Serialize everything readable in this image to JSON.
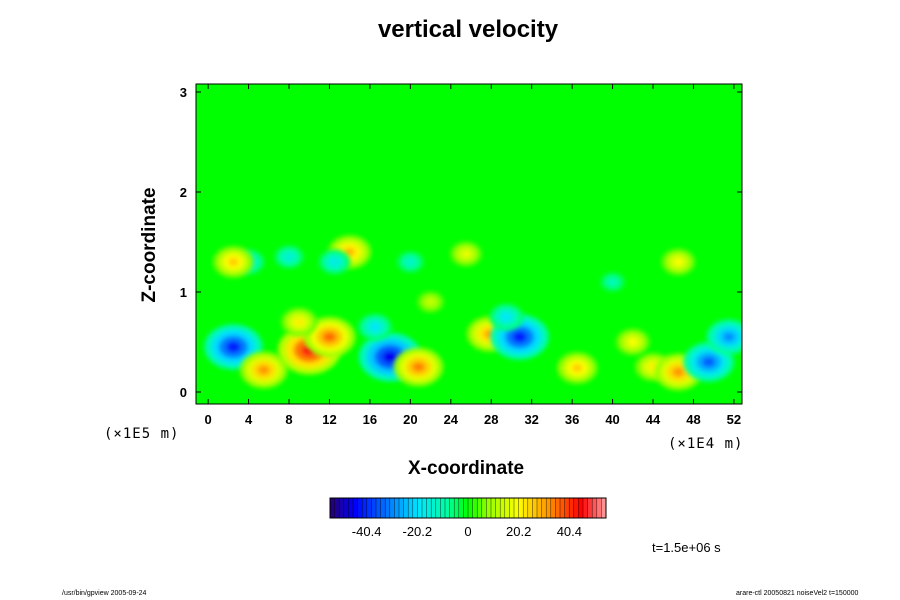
{
  "chart_data": {
    "type": "heatmap",
    "title": "vertical velocity",
    "xlabel": "X-coordinate",
    "ylabel": "Z-coordinate",
    "x_unit": "(×1E4 m)",
    "y_unit": "(×1E5 m)",
    "x_ticks": [
      0,
      4,
      8,
      12,
      16,
      20,
      24,
      28,
      32,
      36,
      40,
      44,
      48,
      52
    ],
    "y_ticks": [
      0,
      1,
      2,
      3
    ],
    "xlim": [
      -1.2,
      52.8
    ],
    "ylim": [
      -0.12,
      3.08
    ],
    "colorbar": {
      "ticks": [
        -40.4,
        -20.2,
        0,
        20.2,
        40.4
      ],
      "range": [
        -55,
        55
      ]
    },
    "background_value": 0,
    "features": [
      {
        "x": 2.5,
        "z": 0.45,
        "value": -42
      },
      {
        "x": 5.5,
        "z": 0.22,
        "value": 32
      },
      {
        "x": 10.0,
        "z": 0.42,
        "value": 46
      },
      {
        "x": 12.0,
        "z": 0.55,
        "value": 36
      },
      {
        "x": 9.0,
        "z": 0.7,
        "value": 22
      },
      {
        "x": 18.0,
        "z": 0.35,
        "value": -46
      },
      {
        "x": 16.5,
        "z": 0.65,
        "value": -20
      },
      {
        "x": 20.8,
        "z": 0.25,
        "value": 34
      },
      {
        "x": 27.8,
        "z": 0.58,
        "value": 30
      },
      {
        "x": 30.8,
        "z": 0.55,
        "value": -42
      },
      {
        "x": 29.5,
        "z": 0.75,
        "value": -20
      },
      {
        "x": 36.5,
        "z": 0.24,
        "value": 26
      },
      {
        "x": 42.0,
        "z": 0.5,
        "value": 20
      },
      {
        "x": 44.0,
        "z": 0.25,
        "value": 22
      },
      {
        "x": 46.5,
        "z": 0.2,
        "value": 32
      },
      {
        "x": 49.5,
        "z": 0.3,
        "value": -35
      },
      {
        "x": 51.5,
        "z": 0.55,
        "value": -30
      },
      {
        "x": 4.0,
        "z": 1.3,
        "value": -18
      },
      {
        "x": 2.5,
        "z": 1.3,
        "value": 26
      },
      {
        "x": 14.0,
        "z": 1.4,
        "value": 28
      },
      {
        "x": 12.5,
        "z": 1.3,
        "value": -18
      },
      {
        "x": 8.0,
        "z": 1.35,
        "value": -16
      },
      {
        "x": 20.0,
        "z": 1.3,
        "value": -14
      },
      {
        "x": 25.5,
        "z": 1.38,
        "value": 18
      },
      {
        "x": 46.5,
        "z": 1.3,
        "value": 20
      },
      {
        "x": 40.0,
        "z": 1.1,
        "value": -12
      },
      {
        "x": 22.0,
        "z": 0.9,
        "value": 14
      }
    ],
    "time": "t=1.5e+06 s",
    "footer_left": "/usr/bin/gpview 2005-09-24",
    "footer_right": "arare-ctl 20050821 noiseVel2 t=150000"
  }
}
